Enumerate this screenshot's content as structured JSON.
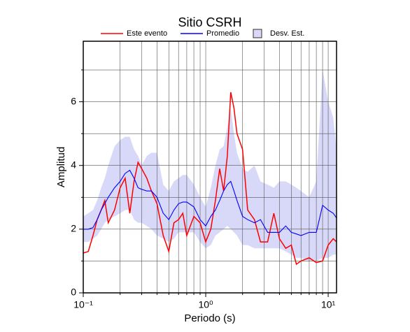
{
  "chart_data": {
    "type": "line",
    "title": "Sitio CSRH",
    "xlabel": "Periodo (s)",
    "ylabel": "Amplitud",
    "xscale": "log",
    "grid": true,
    "legend": "top",
    "xlim": [
      0.1,
      11.7
    ],
    "ylim": [
      0,
      7.9
    ],
    "xticks": [
      {
        "value": 0.1,
        "label": "10⁻¹"
      },
      {
        "value": 1,
        "label": "10⁰"
      },
      {
        "value": 10,
        "label": "10¹"
      }
    ],
    "x_minor_ticks": [
      0.2,
      0.3,
      0.4,
      0.5,
      0.6,
      0.7,
      0.8,
      0.9,
      2,
      3,
      4,
      5,
      6,
      7,
      8,
      9
    ],
    "yticks": [
      0,
      2,
      4,
      6
    ],
    "y_minor_ticks": [
      1,
      3,
      5,
      7
    ],
    "x": [
      0.1,
      0.11,
      0.12,
      0.13,
      0.14,
      0.15,
      0.16,
      0.18,
      0.2,
      0.22,
      0.24,
      0.26,
      0.28,
      0.3,
      0.33,
      0.36,
      0.4,
      0.45,
      0.5,
      0.55,
      0.6,
      0.65,
      0.7,
      0.8,
      0.9,
      1.0,
      1.1,
      1.2,
      1.3,
      1.4,
      1.5,
      1.6,
      1.7,
      1.8,
      2.0,
      2.2,
      2.5,
      2.8,
      3.2,
      3.6,
      4.0,
      4.5,
      5.0,
      5.5,
      6.0,
      7.0,
      8.0,
      9.0,
      10,
      11,
      11.7
    ],
    "series": [
      {
        "name": "Este evento",
        "color": "#ff0000",
        "values": [
          1.25,
          1.3,
          1.8,
          2.3,
          2.6,
          2.9,
          2.2,
          2.6,
          3.3,
          3.6,
          2.5,
          3.5,
          4.1,
          3.9,
          3.6,
          3.2,
          2.8,
          1.8,
          1.3,
          2.2,
          2.3,
          2.5,
          1.8,
          2.4,
          2.2,
          1.6,
          2.0,
          2.9,
          3.9,
          3.2,
          4.3,
          6.3,
          5.8,
          5.0,
          4.5,
          2.6,
          2.3,
          1.6,
          1.6,
          2.5,
          1.7,
          1.4,
          1.5,
          0.9,
          1.0,
          1.1,
          0.95,
          1.0,
          1.5,
          1.7,
          1.6
        ]
      },
      {
        "name": "Promedio",
        "color": "#0000ff",
        "values": [
          2.0,
          2.0,
          2.05,
          2.3,
          2.6,
          2.8,
          3.0,
          3.3,
          3.5,
          3.75,
          3.85,
          3.6,
          3.3,
          3.25,
          3.2,
          3.2,
          3.0,
          2.5,
          2.3,
          2.6,
          2.8,
          2.85,
          2.85,
          2.7,
          2.3,
          2.1,
          2.4,
          2.6,
          2.9,
          3.2,
          3.4,
          3.5,
          3.2,
          2.9,
          2.4,
          2.3,
          2.2,
          2.3,
          1.9,
          1.9,
          1.9,
          2.1,
          1.9,
          1.85,
          1.8,
          1.9,
          1.9,
          2.75,
          2.6,
          2.5,
          2.35
        ]
      },
      {
        "name": "Desv. Est.",
        "type": "band",
        "color": "#d8d8f8",
        "upper": [
          2.4,
          2.5,
          2.6,
          2.9,
          3.3,
          3.6,
          4.0,
          4.6,
          4.8,
          4.9,
          4.9,
          4.5,
          4.3,
          4.0,
          4.3,
          4.4,
          4.4,
          3.4,
          3.2,
          3.5,
          3.6,
          3.7,
          3.7,
          3.4,
          3.0,
          2.7,
          3.3,
          4.0,
          4.5,
          4.6,
          5.2,
          5.8,
          5.0,
          4.4,
          3.9,
          3.8,
          4.0,
          3.5,
          3.4,
          3.3,
          3.5,
          3.5,
          3.4,
          3.3,
          3.2,
          3.0,
          3.5,
          7.0,
          6.0,
          5.5,
          4.5
        ],
        "lower": [
          1.6,
          1.6,
          1.7,
          1.8,
          2.0,
          2.2,
          2.3,
          2.4,
          2.5,
          2.6,
          2.6,
          2.3,
          2.2,
          2.2,
          2.1,
          2.0,
          1.8,
          1.7,
          1.6,
          1.7,
          1.9,
          1.9,
          1.9,
          1.9,
          1.6,
          1.4,
          1.5,
          1.8,
          1.9,
          2.0,
          2.1,
          2.0,
          1.9,
          1.8,
          1.5,
          1.5,
          1.4,
          1.4,
          1.4,
          1.4,
          1.4,
          1.3,
          1.2,
          1.1,
          1.1,
          1.0,
          1.0,
          1.1,
          1.1,
          1.2,
          1.2
        ]
      }
    ]
  }
}
